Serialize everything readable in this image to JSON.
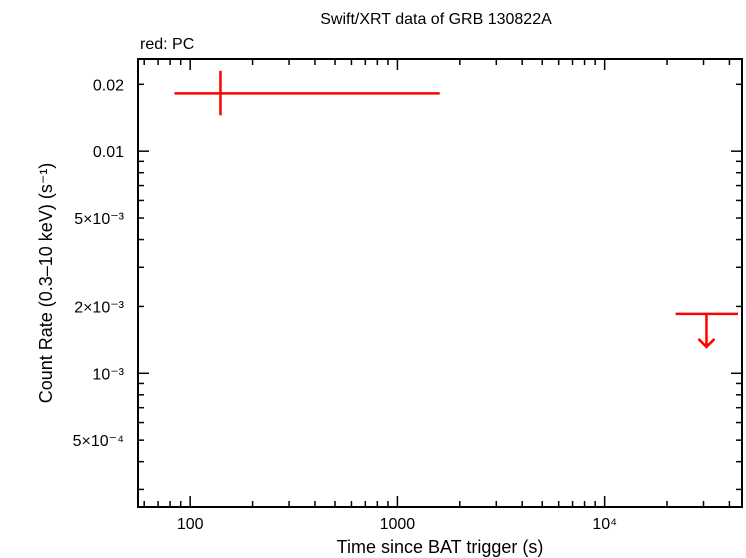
{
  "chart_data": {
    "type": "scatter",
    "title": "Swift/XRT data of GRB 130822A",
    "subtitle": "red: PC",
    "xlabel": "Time since BAT trigger (s)",
    "ylabel": "Count Rate (0.3–10 keV) (s⁻¹)",
    "x_scale": "log",
    "y_scale": "log",
    "xlim": [
      56,
      46000
    ],
    "ylim": [
      0.00025,
      0.026
    ],
    "grid": false,
    "x_ticks": [
      {
        "value": 100,
        "label": "100"
      },
      {
        "value": 1000,
        "label": "1000"
      },
      {
        "value": 10000,
        "label": "10⁴"
      }
    ],
    "y_ticks": [
      {
        "value": 0.02,
        "label": "0.02"
      },
      {
        "value": 0.01,
        "label": "0.01"
      },
      {
        "value": 0.005,
        "label": "5×10⁻³"
      },
      {
        "value": 0.002,
        "label": "2×10⁻³"
      },
      {
        "value": 0.001,
        "label": "10⁻³"
      },
      {
        "value": 0.0005,
        "label": "5×10⁻⁴"
      }
    ],
    "series": [
      {
        "name": "PC",
        "color": "#ff0000",
        "points": [
          {
            "x": 140,
            "x_low": 84,
            "x_high": 1600,
            "y": 0.0182,
            "y_low": 0.0145,
            "y_high": 0.023
          }
        ],
        "upper_limits": [
          {
            "x": 31000,
            "x_low": 22000,
            "x_high": 44000,
            "y": 0.00185
          }
        ]
      }
    ]
  }
}
